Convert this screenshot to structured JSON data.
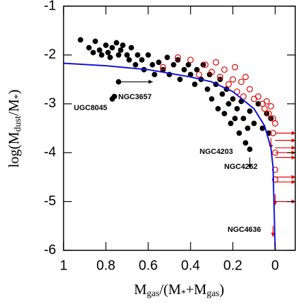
{
  "chart_data": {
    "type": "scatter",
    "xlabel": [
      "M",
      "gas",
      "/(M",
      "*",
      "+M",
      "gas",
      ")"
    ],
    "ylabel": [
      "log(M",
      "dust",
      "/M",
      "*",
      ")"
    ],
    "xlim": [
      1,
      -0.095
    ],
    "ylim": [
      -6,
      -1
    ],
    "xticks": [
      1,
      0.8,
      0.6,
      0.4,
      0.2,
      0
    ],
    "yticks": [
      -1,
      -2,
      -3,
      -4,
      -5,
      -6
    ],
    "series": [
      {
        "color": "#000000",
        "marker": "filled",
        "x": [
          0.92,
          0.88,
          0.86,
          0.85,
          0.83,
          0.82,
          0.8,
          0.79,
          0.78,
          0.77,
          0.75,
          0.74,
          0.73,
          0.72,
          0.7,
          0.69,
          0.68,
          0.66,
          0.65,
          0.63,
          0.62,
          0.6,
          0.58,
          0.57,
          0.55,
          0.53,
          0.51,
          0.5,
          0.48,
          0.46,
          0.45,
          0.43,
          0.41,
          0.4,
          0.38,
          0.37,
          0.35,
          0.34,
          0.32,
          0.31,
          0.3,
          0.28,
          0.27,
          0.26,
          0.25,
          0.24,
          0.23,
          0.22,
          0.21,
          0.2,
          0.19,
          0.18,
          0.17,
          0.16,
          0.15,
          0.14,
          0.13,
          0.12,
          0.1,
          0.08,
          0.06,
          0.04,
          0.03,
          0.02,
          0.74,
          0.76,
          0.77,
          0.12
        ],
        "y": [
          -1.69,
          -1.85,
          -1.95,
          -1.72,
          -1.9,
          -2.0,
          -1.8,
          -1.95,
          -2.05,
          -1.85,
          -1.75,
          -2.0,
          -1.9,
          -1.8,
          -2.0,
          -2.1,
          -1.85,
          -2.2,
          -2.0,
          -2.1,
          -2.3,
          -2.0,
          -2.2,
          -2.4,
          -2.15,
          -2.3,
          -2.05,
          -2.4,
          -2.2,
          -2.1,
          -2.5,
          -2.3,
          -2.2,
          -2.4,
          -2.6,
          -2.3,
          -2.5,
          -2.2,
          -2.7,
          -2.4,
          -2.9,
          -2.6,
          -3.1,
          -2.5,
          -2.8,
          -3.2,
          -2.7,
          -3.0,
          -3.4,
          -2.9,
          -3.3,
          -3.1,
          -3.6,
          -2.95,
          -3.3,
          -3.8,
          -3.5,
          -3.15,
          -3.4,
          -3.0,
          -3.5,
          -3.2,
          -3.6,
          -3.3,
          -2.55,
          -2.85,
          -2.9,
          -3.93
        ]
      },
      {
        "color": "#e00000",
        "marker": "open",
        "x": [
          0.53,
          0.46,
          0.4,
          0.36,
          0.33,
          0.3,
          0.28,
          0.26,
          0.24,
          0.22,
          0.2,
          0.19,
          0.18,
          0.16,
          0.15,
          0.14,
          0.12,
          0.1,
          0.08,
          0.06,
          0.05,
          0.04,
          0.03,
          0.02,
          0.01,
          0.01,
          0.0,
          0.0,
          0.0,
          0.0
        ],
        "y": [
          -2.25,
          -2.05,
          -2.1,
          -2.4,
          -2.2,
          -2.35,
          -2.15,
          -2.45,
          -2.3,
          -2.6,
          -2.5,
          -2.25,
          -2.75,
          -2.55,
          -2.85,
          -2.45,
          -2.7,
          -2.9,
          -2.85,
          -3.0,
          -3.1,
          -2.95,
          -3.2,
          -3.05,
          -3.3,
          -3.6,
          -4.0,
          -4.35,
          -4.55,
          -3.4
        ]
      },
      {
        "color": "#e00000",
        "marker": "arrow-right",
        "x": [
          0.0,
          0.0,
          0.0,
          0.0,
          0.0,
          0.0,
          0.0,
          0.0
        ],
        "y": [
          -3.6,
          -3.75,
          -3.9,
          -4.0,
          -4.1,
          -4.5,
          -4.6,
          -5.0
        ]
      },
      {
        "color": "#e00000",
        "marker": "arrow-down",
        "x": [
          0.02,
          0.0,
          0.01
        ],
        "y": [
          -3.7,
          -4.85,
          -5.5
        ]
      },
      {
        "color": "#000000",
        "marker": "arrow-down",
        "x": [
          0.12
        ],
        "y": [
          -4.1
        ]
      },
      {
        "color": "#000000",
        "marker": "arrow-left",
        "x": [
          0.74
        ],
        "y": [
          -2.55
        ]
      },
      {
        "color": "#1010e0",
        "marker": "line",
        "x": [
          1,
          0.8,
          0.6,
          0.4,
          0.3,
          0.2,
          0.1,
          0.05,
          0.02,
          0.01,
          0.0
        ],
        "y": [
          -2.17,
          -2.22,
          -2.3,
          -2.45,
          -2.55,
          -2.75,
          -3.1,
          -3.45,
          -3.9,
          -4.3,
          -6
        ]
      }
    ],
    "annotations": [
      "NGC3657",
      "UGC8045",
      "NGC4203",
      "NGC4262",
      "NGC4636"
    ]
  }
}
